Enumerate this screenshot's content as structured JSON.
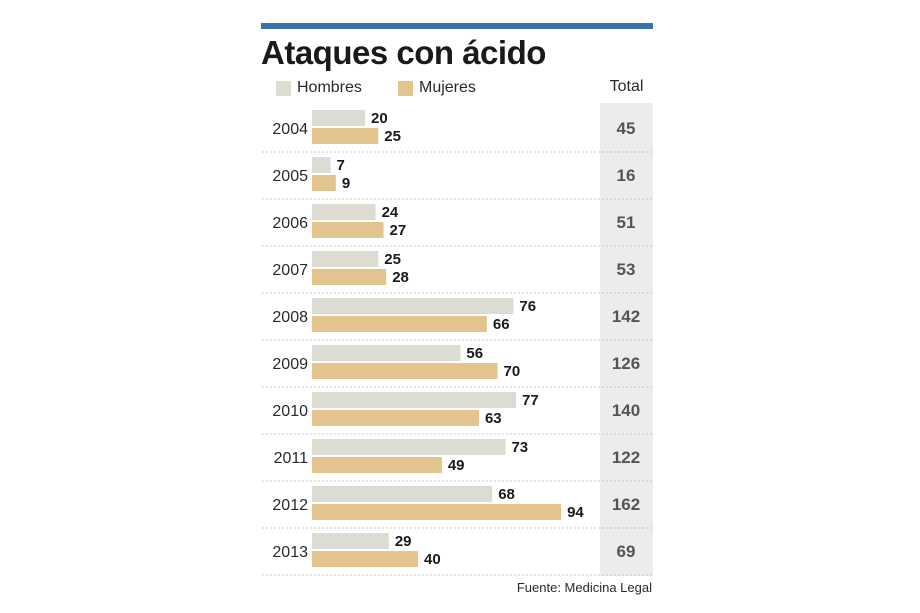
{
  "colors": {
    "top_bar": "#3a73a9",
    "hombres": "#dcdcd2",
    "mujeres": "#e3c48e",
    "total_column": "#ececec",
    "divider": "#c8c8c8"
  },
  "title": "Ataques con ácido",
  "legend": {
    "hombres": "Hombres",
    "mujeres": "Mujeres",
    "total": "Total"
  },
  "source": "Fuente: Medicina Legal",
  "chart_data": {
    "type": "bar",
    "orientation": "horizontal",
    "title": "Ataques con ácido",
    "categories": [
      "2004",
      "2005",
      "2006",
      "2007",
      "2008",
      "2009",
      "2010",
      "2011",
      "2012",
      "2013"
    ],
    "series": [
      {
        "name": "Hombres",
        "values": [
          20,
          7,
          24,
          25,
          76,
          56,
          77,
          73,
          68,
          29
        ]
      },
      {
        "name": "Mujeres",
        "values": [
          25,
          9,
          27,
          28,
          66,
          70,
          63,
          49,
          94,
          40
        ]
      }
    ],
    "totals_label": "Total",
    "totals": [
      45,
      16,
      51,
      53,
      142,
      126,
      140,
      122,
      162,
      69
    ],
    "xlim": [
      0,
      100
    ],
    "grid": false,
    "legend_position": "top-left"
  }
}
